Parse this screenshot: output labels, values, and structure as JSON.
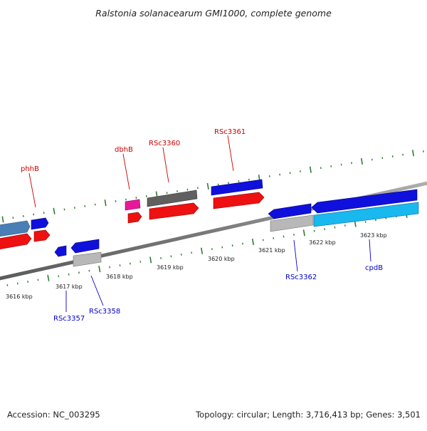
{
  "title": "Ralstonia solanacearum GMI1000, complete genome",
  "footer": {
    "accession": "Accession: NC_003295",
    "summary": "Topology: circular; Length: 3,716,413 bp; Genes: 3,501"
  },
  "colors": {
    "backbone": "#808080",
    "tick_green": "#2e7d32",
    "label_red": "#cc0000",
    "label_blue": "#0000cc",
    "text": "#222222"
  },
  "scale_labels": [
    "3616 kbp",
    "3617 kbp",
    "3618 kbp",
    "3619 kbp",
    "3620 kbp",
    "3621 kbp",
    "3622 kbp",
    "3623 kbp"
  ],
  "gene_labels": [
    {
      "id": "phhB",
      "text": "phhB",
      "strand": "forward"
    },
    {
      "id": "dbhB",
      "text": "dbhB",
      "strand": "forward"
    },
    {
      "id": "RSc3360",
      "text": "RSc3360",
      "strand": "forward"
    },
    {
      "id": "RSc3361",
      "text": "RSc3361",
      "strand": "forward"
    },
    {
      "id": "RSc3357",
      "text": "RSc3357",
      "strand": "reverse"
    },
    {
      "id": "RSc3358",
      "text": "RSc3358",
      "strand": "reverse"
    },
    {
      "id": "RSc3362",
      "text": "RSc3362",
      "strand": "reverse"
    },
    {
      "id": "cpdB",
      "text": "cpdB",
      "strand": "reverse"
    }
  ],
  "features": [
    {
      "id": "f-steelblue-left",
      "color": "#4a7fb5",
      "type": "gene"
    },
    {
      "id": "f-blue-left",
      "color": "#1010dd",
      "type": "gene"
    },
    {
      "id": "f-red-left",
      "color": "#ee1111",
      "type": "cds"
    },
    {
      "id": "f-red-left-small",
      "color": "#ee1111",
      "type": "cds"
    },
    {
      "id": "f-pink-dbhB",
      "color": "#e8189a",
      "type": "gene"
    },
    {
      "id": "f-red-dbhB",
      "color": "#ee1111",
      "type": "cds"
    },
    {
      "id": "f-gray-3360",
      "color": "#606060",
      "type": "gene"
    },
    {
      "id": "f-red-3360",
      "color": "#ee1111",
      "type": "cds"
    },
    {
      "id": "f-blue-3361",
      "color": "#1010dd",
      "type": "gene"
    },
    {
      "id": "f-red-3361",
      "color": "#ee1111",
      "type": "cds"
    },
    {
      "id": "f-blue-3357",
      "color": "#1010dd",
      "type": "gene"
    },
    {
      "id": "f-blue-3358",
      "color": "#1010dd",
      "type": "gene"
    },
    {
      "id": "f-silver-3358",
      "color": "#b8b8b8",
      "type": "cds"
    },
    {
      "id": "f-blue-3362",
      "color": "#1010dd",
      "type": "gene"
    },
    {
      "id": "f-silver-3362",
      "color": "#b8b8b8",
      "type": "cds"
    },
    {
      "id": "f-blue-cpdB",
      "color": "#1010dd",
      "type": "gene"
    },
    {
      "id": "f-cyan-cpdB",
      "color": "#19b8ee",
      "type": "cds"
    }
  ]
}
